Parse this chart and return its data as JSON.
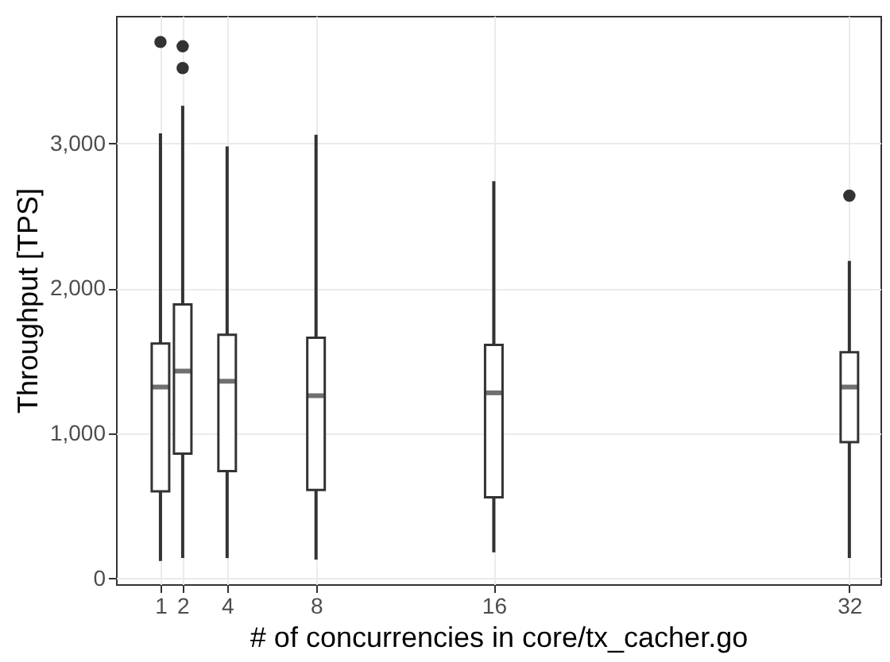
{
  "chart_data": {
    "type": "box",
    "xlabel": "# of concurrencies in core/tx_cacher.go",
    "ylabel": "Throughput [TPS]",
    "x": [
      1,
      2,
      4,
      8,
      16,
      32
    ],
    "boxes": [
      {
        "low": 120,
        "q1": 600,
        "median": 1320,
        "q3": 1620,
        "high": 3070,
        "outliers": [
          3700
        ]
      },
      {
        "low": 140,
        "q1": 860,
        "median": 1430,
        "q3": 1890,
        "high": 3260,
        "outliers": [
          3670,
          3520
        ]
      },
      {
        "low": 140,
        "q1": 740,
        "median": 1360,
        "q3": 1680,
        "high": 2980
      },
      {
        "low": 130,
        "q1": 610,
        "median": 1260,
        "q3": 1660,
        "high": 3060
      },
      {
        "low": 180,
        "q1": 560,
        "median": 1280,
        "q3": 1610,
        "high": 2740
      },
      {
        "low": 140,
        "q1": 940,
        "median": 1320,
        "q3": 1560,
        "high": 2190,
        "outliers": [
          2640
        ]
      }
    ],
    "xlim": [
      -1,
      33.4
    ],
    "xticks": [
      1,
      2,
      4,
      8,
      16,
      32
    ],
    "ylim": [
      -40,
      3880
    ],
    "yticks": [
      0,
      {
        "value": 1000,
        "label": "1,000"
      },
      {
        "value": 2000,
        "label": "2,000"
      },
      {
        "value": 3000,
        "label": "3,000"
      }
    ],
    "grid": true
  }
}
